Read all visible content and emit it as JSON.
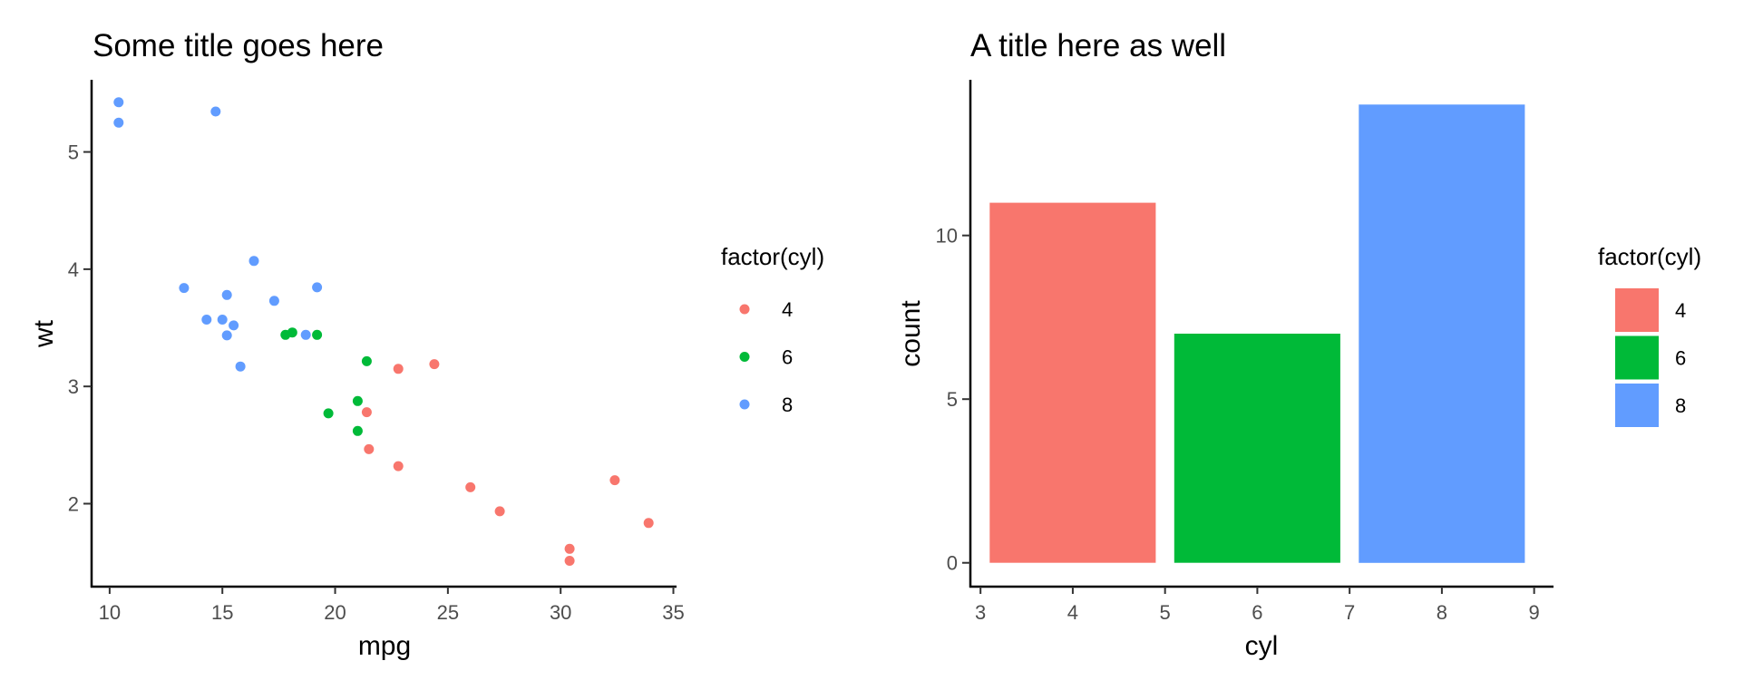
{
  "chart_data": [
    {
      "type": "scatter",
      "title": "Some title goes here",
      "xlabel": "mpg",
      "ylabel": "wt",
      "xlim": [
        9.2,
        35.1
      ],
      "ylim": [
        1.3,
        5.6
      ],
      "xticks": [
        10,
        15,
        20,
        25,
        30,
        35
      ],
      "yticks": [
        2,
        3,
        4,
        5
      ],
      "grid": false,
      "legend": {
        "title": "factor(cyl)",
        "position": "right",
        "labels": [
          "4",
          "6",
          "8"
        ]
      },
      "colors": {
        "4": "#F8766D",
        "6": "#00BA38",
        "8": "#619CFF"
      },
      "series": [
        {
          "name": "4",
          "points": [
            [
              22.8,
              2.32
            ],
            [
              24.4,
              3.19
            ],
            [
              22.8,
              3.15
            ],
            [
              32.4,
              2.2
            ],
            [
              30.4,
              1.615
            ],
            [
              33.9,
              1.835
            ],
            [
              21.5,
              2.465
            ],
            [
              27.3,
              1.935
            ],
            [
              26.0,
              2.14
            ],
            [
              30.4,
              1.513
            ],
            [
              21.4,
              2.78
            ]
          ]
        },
        {
          "name": "6",
          "points": [
            [
              21.0,
              2.62
            ],
            [
              21.0,
              2.875
            ],
            [
              21.4,
              3.215
            ],
            [
              18.1,
              3.46
            ],
            [
              19.2,
              3.44
            ],
            [
              17.8,
              3.44
            ],
            [
              19.7,
              2.77
            ]
          ]
        },
        {
          "name": "8",
          "points": [
            [
              18.7,
              3.44
            ],
            [
              14.3,
              3.57
            ],
            [
              16.4,
              4.07
            ],
            [
              17.3,
              3.73
            ],
            [
              15.2,
              3.78
            ],
            [
              10.4,
              5.25
            ],
            [
              10.4,
              5.424
            ],
            [
              14.7,
              5.345
            ],
            [
              15.5,
              3.52
            ],
            [
              15.2,
              3.435
            ],
            [
              13.3,
              3.84
            ],
            [
              19.2,
              3.845
            ],
            [
              15.8,
              3.17
            ],
            [
              15.0,
              3.57
            ]
          ]
        }
      ]
    },
    {
      "type": "bar",
      "title": "A title here as well",
      "xlabel": "cyl",
      "ylabel": "count",
      "xlim": [
        2.9,
        9.2
      ],
      "ylim": [
        -0.7,
        14.7
      ],
      "xticks": [
        3,
        4,
        5,
        6,
        7,
        8,
        9
      ],
      "yticks": [
        0,
        5,
        10
      ],
      "grid": false,
      "legend": {
        "title": "factor(cyl)",
        "position": "right",
        "labels": [
          "4",
          "6",
          "8"
        ]
      },
      "colors": {
        "4": "#F8766D",
        "6": "#00BA38",
        "8": "#619CFF"
      },
      "categories": [
        "4",
        "6",
        "8"
      ],
      "x": [
        4,
        6,
        8
      ],
      "bar_width": 1.8,
      "values": [
        11,
        7,
        14
      ]
    }
  ]
}
